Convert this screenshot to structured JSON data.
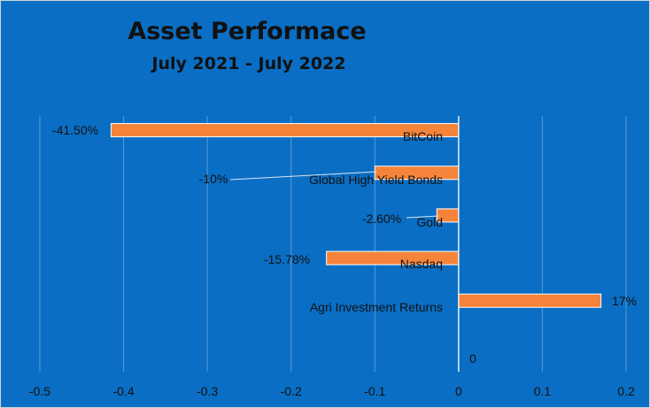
{
  "chart_data": {
    "type": "bar",
    "orientation": "horizontal",
    "title": "Asset Performace",
    "subtitle": "July 2021 - July 2022",
    "categories": [
      "BitCoin",
      "Global High Yield Bonds",
      "Gold",
      "Nasdaq",
      "Agri Investment Returns",
      ""
    ],
    "values": [
      -0.415,
      -0.1,
      -0.026,
      -0.1578,
      0.17,
      0
    ],
    "data_labels": [
      "-41.50%",
      "-10%",
      "-2.60%",
      "-15.78%",
      "17%",
      "0"
    ],
    "xlim": [
      -0.5,
      0.2
    ],
    "x_ticks": [
      -0.5,
      -0.4,
      -0.3,
      -0.2,
      -0.1,
      0,
      0.1,
      0.2
    ],
    "x_tick_labels": [
      "-0.5",
      "-0.4",
      "-0.3",
      "-0.2",
      "-0.1",
      "0",
      "0.1",
      "0.2"
    ],
    "grid": true,
    "legend": "none",
    "colors": {
      "background": "#0a6ec4",
      "bar": "#f5843a",
      "bar_edge": "#ffffff",
      "gridline": "#5b9bd5",
      "axis": "#e8eef6",
      "text": "#111111"
    }
  }
}
